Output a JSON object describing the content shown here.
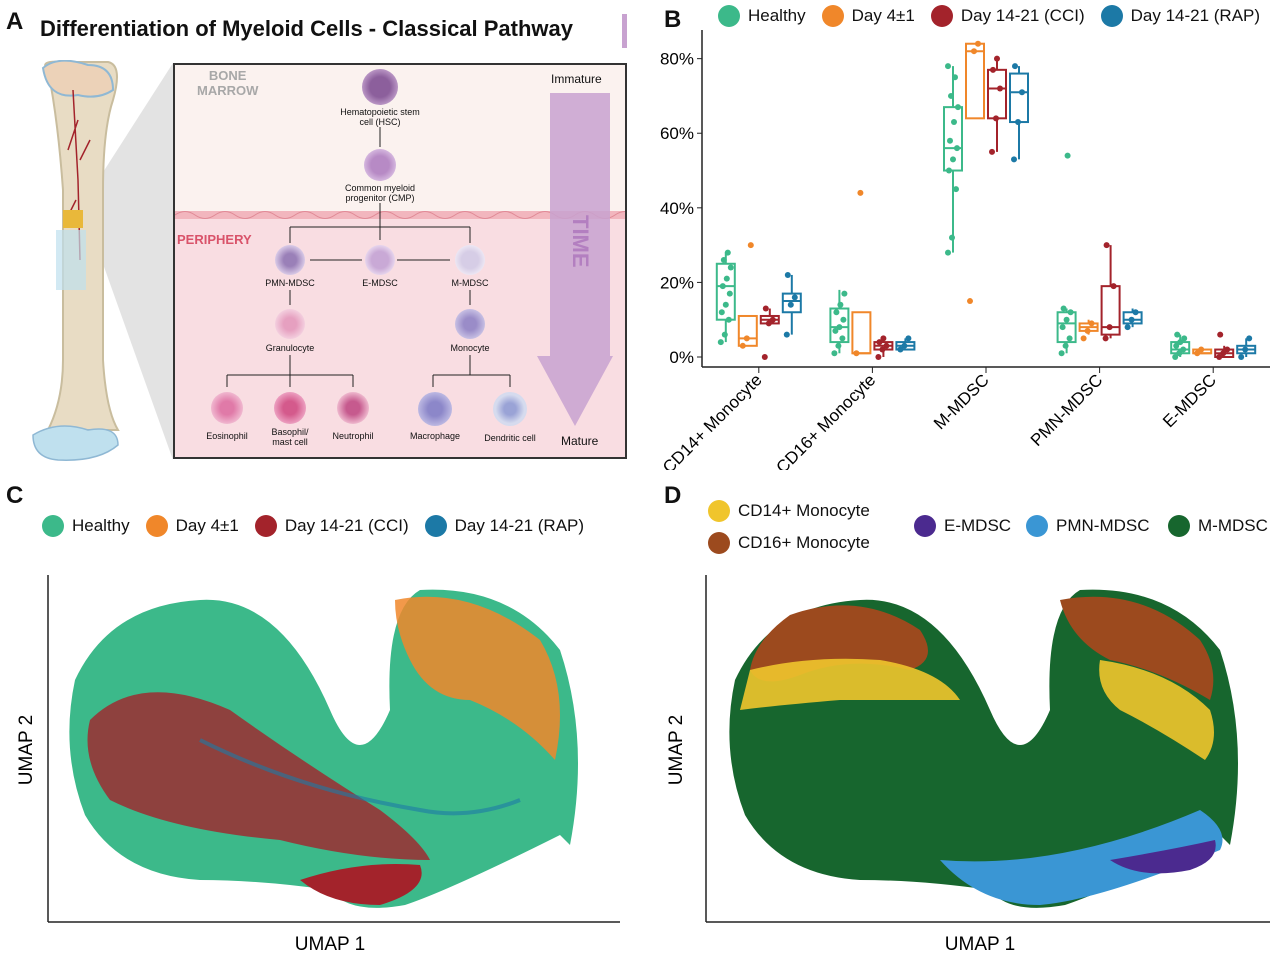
{
  "panels": {
    "a": "A",
    "b": "B",
    "c": "C",
    "d": "D"
  },
  "panel_a": {
    "title": "Differentiation of Myeloid Cells - Classical Pathway",
    "region_bone": "BONE\nMARROW",
    "region_bone_line1": "BONE",
    "region_bone_line2": "MARROW",
    "region_periphery": "PERIPHERY",
    "immature": "Immature",
    "mature": "Mature",
    "time": "TIME",
    "cells": {
      "hsc": "Hematopoietic stem cell (HSC)",
      "hsc_l1": "Hematopoietic stem",
      "hsc_l2": "cell (HSC)",
      "cmp_l1": "Common myeloid",
      "cmp_l2": "progenitor (CMP)",
      "pmn": "PMN-MDSC",
      "emdsc": "E-MDSC",
      "mmdsc": "M-MDSC",
      "granulocyte": "Granulocyte",
      "monocyte": "Monocyte",
      "eosinophil": "Eosinophil",
      "basophil_l1": "Basophil/",
      "basophil_l2": "mast cell",
      "neutrophil": "Neutrophil",
      "macrophage": "Macrophage",
      "dendritic": "Dendritic cell"
    },
    "colors": {
      "bone_marrow_bg": "#fbf2ef",
      "periphery_bg": "#f9dde2",
      "arrow": "#c8a2d0"
    }
  },
  "panel_b": {
    "legend": [
      {
        "name": "Healthy",
        "color": "#3cb98a"
      },
      {
        "name": "Day 4±1",
        "color": "#f0872a"
      },
      {
        "name": "Day 14-21 (CCI)",
        "color": "#a3232b"
      },
      {
        "name": "Day 14-21 (RAP)",
        "color": "#1c79a6"
      }
    ]
  },
  "chart_data": [
    {
      "type": "box",
      "categories": [
        "CD14+ Monocyte",
        "CD16+ Monocyte",
        "M-MDSC",
        "PMN-MDSC",
        "E-MDSC"
      ],
      "ylim": [
        0,
        85
      ],
      "yticks": [
        "0%",
        "20%",
        "40%",
        "60%",
        "80%"
      ],
      "series": [
        {
          "name": "Healthy",
          "color": "#3cb98a",
          "boxes": [
            {
              "min": 4,
              "q1": 10,
              "median": 19,
              "q3": 25,
              "max": 28,
              "points": [
                4,
                6,
                10,
                12,
                14,
                17,
                19,
                21,
                24,
                26,
                28
              ]
            },
            {
              "min": 1,
              "q1": 4,
              "median": 8,
              "q3": 13,
              "max": 18,
              "points": [
                1,
                3,
                5,
                7,
                8,
                10,
                12,
                14,
                17
              ]
            },
            {
              "min": 28,
              "q1": 50,
              "median": 56,
              "q3": 67,
              "max": 78,
              "points": [
                28,
                32,
                45,
                50,
                53,
                56,
                58,
                63,
                67,
                70,
                75,
                78
              ]
            },
            {
              "min": 1,
              "q1": 4,
              "median": 9,
              "q3": 12,
              "max": 13,
              "points": [
                1,
                3,
                5,
                8,
                10,
                12,
                13,
                54
              ]
            },
            {
              "min": 0,
              "q1": 1,
              "median": 2,
              "q3": 4,
              "max": 6,
              "points": [
                0,
                1,
                2,
                3,
                4,
                5,
                6
              ]
            }
          ]
        },
        {
          "name": "Day 4±1",
          "color": "#f0872a",
          "boxes": [
            {
              "min": 3,
              "q1": 3,
              "median": 5,
              "q3": 11,
              "max": 11,
              "points": [
                3,
                5,
                30
              ]
            },
            {
              "min": 1,
              "q1": 1,
              "median": 1,
              "q3": 12,
              "max": 12,
              "points": [
                1,
                44
              ]
            },
            {
              "min": 64,
              "q1": 64,
              "median": 82,
              "q3": 84,
              "max": 84,
              "points": [
                15,
                82,
                84
              ]
            },
            {
              "min": 6,
              "q1": 7,
              "median": 8,
              "q3": 9,
              "max": 10,
              "points": [
                5,
                7,
                9
              ]
            },
            {
              "min": 1,
              "q1": 1,
              "median": 1,
              "q3": 2,
              "max": 2,
              "points": [
                1,
                2
              ]
            }
          ]
        },
        {
          "name": "Day 14-21 (CCI)",
          "color": "#a3232b",
          "boxes": [
            {
              "min": 9,
              "q1": 9,
              "median": 10,
              "q3": 11,
              "max": 13,
              "points": [
                0,
                9,
                10,
                13
              ]
            },
            {
              "min": 0,
              "q1": 2,
              "median": 3,
              "q3": 4,
              "max": 5,
              "points": [
                0,
                2,
                3,
                4,
                5
              ]
            },
            {
              "min": 55,
              "q1": 64,
              "median": 72,
              "q3": 77,
              "max": 80,
              "points": [
                55,
                64,
                72,
                77,
                80
              ]
            },
            {
              "min": 5,
              "q1": 6,
              "median": 8,
              "q3": 19,
              "max": 30,
              "points": [
                5,
                8,
                19,
                30
              ]
            },
            {
              "min": 0,
              "q1": 0,
              "median": 1,
              "q3": 2,
              "max": 3,
              "points": [
                0,
                1,
                2,
                6
              ]
            }
          ]
        },
        {
          "name": "Day 14-21 (RAP)",
          "color": "#1c79a6",
          "boxes": [
            {
              "min": 6,
              "q1": 12,
              "median": 15,
              "q3": 17,
              "max": 22,
              "points": [
                6,
                14,
                16,
                22
              ]
            },
            {
              "min": 2,
              "q1": 2,
              "median": 3,
              "q3": 4,
              "max": 5,
              "points": [
                2,
                3,
                5
              ]
            },
            {
              "min": 53,
              "q1": 63,
              "median": 71,
              "q3": 76,
              "max": 78,
              "points": [
                53,
                63,
                71,
                78
              ]
            },
            {
              "min": 8,
              "q1": 9,
              "median": 10,
              "q3": 12,
              "max": 13,
              "points": [
                8,
                10,
                12
              ]
            },
            {
              "min": 0,
              "q1": 1,
              "median": 2,
              "q3": 3,
              "max": 5,
              "points": [
                0,
                2,
                5
              ]
            }
          ]
        }
      ]
    },
    {
      "type": "scatter",
      "xlabel": "UMAP 1",
      "ylabel": "UMAP 2",
      "legend": [
        {
          "name": "Healthy",
          "color": "#3cb98a"
        },
        {
          "name": "Day 4±1",
          "color": "#f0872a"
        },
        {
          "name": "Day 14-21 (CCI)",
          "color": "#a3232b"
        },
        {
          "name": "Day 14-21 (RAP)",
          "color": "#1c79a6"
        }
      ]
    },
    {
      "type": "scatter",
      "xlabel": "UMAP 1",
      "ylabel": "UMAP 2",
      "legend": [
        {
          "name": "CD14+ Monocyte",
          "color": "#f0c52c"
        },
        {
          "name": "CD16+ Monocyte",
          "color": "#9c4a1e"
        },
        {
          "name": "E-MDSC",
          "color": "#4b2a8f"
        },
        {
          "name": "PMN-MDSC",
          "color": "#3a96d4"
        },
        {
          "name": "M-MDSC",
          "color": "#17662e"
        }
      ]
    }
  ]
}
